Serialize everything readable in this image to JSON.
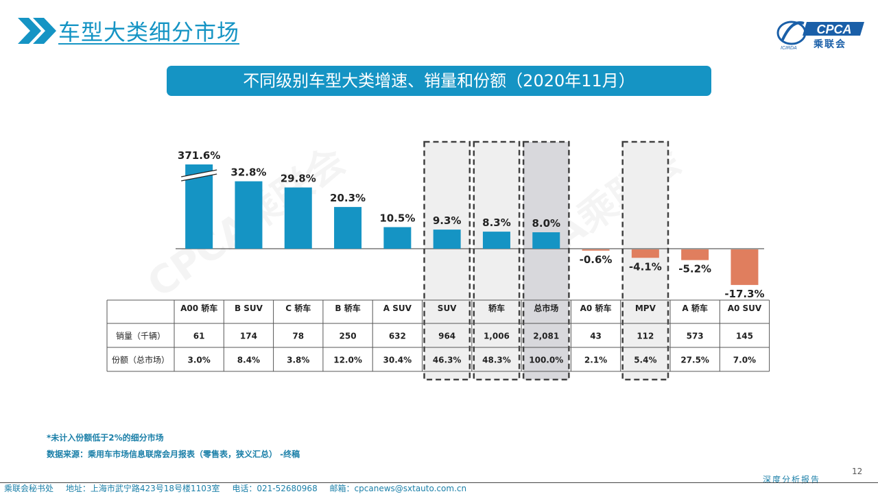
{
  "header": {
    "title": "车型大类细分市场",
    "logo_text": "CPCA",
    "logo_cn": "乘联会",
    "logo_sub": "ICIRDA"
  },
  "banner": {
    "text": "不同级别车型大类增速、销量和份额（2020年11月）"
  },
  "watermark": "CPCA乘联会",
  "colors": {
    "positive": "#1594c4",
    "negative": "#e07e5e",
    "title": "#1594c4",
    "highlight": "#efefef",
    "highlight_dark": "#d8d8dc"
  },
  "chart_data": {
    "type": "bar",
    "categories": [
      "A00 轿车",
      "B SUV",
      "C 轿车",
      "B 轿车",
      "A SUV",
      "SUV",
      "轿车",
      "总市场",
      "A0 轿车",
      "MPV",
      "A 轿车",
      "A0 SUV"
    ],
    "values": [
      371.6,
      32.8,
      29.8,
      20.3,
      10.5,
      9.3,
      8.3,
      8.0,
      -0.6,
      -4.1,
      -5.2,
      -17.3
    ],
    "value_labels": [
      "371.6%",
      "32.8%",
      "29.8%",
      "20.3%",
      "10.5%",
      "9.3%",
      "8.3%",
      "8.0%",
      "-0.6%",
      "-4.1%",
      "-5.2%",
      "-17.3%"
    ],
    "axis_break_on_first_bar": true,
    "highlighted": [
      "SUV",
      "轿车",
      "总市场",
      "MPV"
    ],
    "table": {
      "rows": [
        {
          "label": "销量（千辆）",
          "values": [
            "61",
            "174",
            "78",
            "250",
            "632",
            "964",
            "1,006",
            "2,081",
            "43",
            "112",
            "573",
            "145"
          ]
        },
        {
          "label": "份额（总市场）",
          "values": [
            "3.0%",
            "8.4%",
            "3.8%",
            "12.0%",
            "30.4%",
            "46.3%",
            "48.3%",
            "100.0%",
            "2.1%",
            "5.4%",
            "27.5%",
            "7.0%"
          ]
        }
      ]
    }
  },
  "notes": [
    "*未计入份额低于2%的细分市场",
    "数据来源：乘用车市场信息联席会月报表（零售表，狭义汇总） -终稿"
  ],
  "footer": {
    "org": "乘联会秘书处",
    "address": "地址：上海市武宁路423号18号楼1103室",
    "phone": "电话：021-52680968",
    "email": "邮箱：cpcanews@sxtauto.com.cn",
    "right_text": "深度分析报告",
    "page": "12"
  }
}
